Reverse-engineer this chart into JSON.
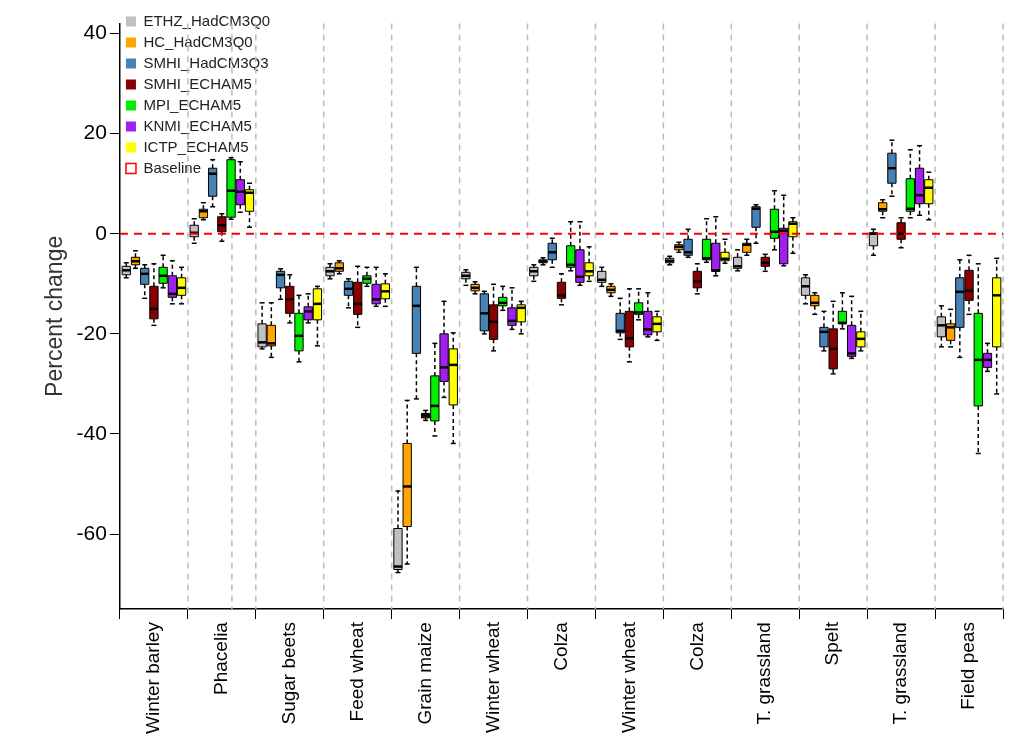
{
  "chart_data": {
    "type": "box",
    "ylabel": "Percent change",
    "categories": [
      "Winter barley",
      "Phacelia",
      "Sugar beets",
      "Feed wheat",
      "Grain maize",
      "Winter wheat",
      "Colza",
      "Winter wheat",
      "Colza",
      "T. grassland",
      "Spelt",
      "T. grassland",
      "Field peas"
    ],
    "ylim": [
      -75,
      42
    ],
    "yticks": [
      -60,
      -40,
      -20,
      0,
      20,
      40
    ],
    "grid": "x",
    "legend": "top left",
    "ref_lines": [
      {
        "axis": "y",
        "value": 0,
        "label": "Baseline",
        "color": "#ff0000",
        "line_style": "dashed"
      }
    ],
    "series": [
      {
        "name": "ETHZ_HadCM3Q0",
        "color": "#c0c0c0",
        "boxes": [
          {
            "low": -8.8,
            "q1": -8.2,
            "median": -7.3,
            "q3": -6.5,
            "high": -5.8
          },
          {
            "low": -1.9,
            "q1": -0.6,
            "median": 0.2,
            "q3": 1.7,
            "high": 3
          },
          {
            "low": -23,
            "q1": -22.6,
            "median": -21.7,
            "q3": -18,
            "high": -13.8
          },
          {
            "low": -9,
            "q1": -8.4,
            "median": -7.5,
            "q3": -6.7,
            "high": -6
          },
          {
            "low": -67.7,
            "q1": -67.1,
            "median": -66.5,
            "q3": -58.9,
            "high": -51.4
          },
          {
            "low": -10.3,
            "q1": -9,
            "median": -8.4,
            "q3": -7.7,
            "high": -7.2
          },
          {
            "low": -9.5,
            "q1": -8.4,
            "median": -7.5,
            "q3": -6.7,
            "high": -6.2
          },
          {
            "low": -10.5,
            "q1": -9.7,
            "median": -9.2,
            "q3": -7.5,
            "high": -6.7
          },
          {
            "low": -6.2,
            "q1": -5.8,
            "median": -5.4,
            "q3": -4.9,
            "high": -4.5
          },
          {
            "low": -7.4,
            "q1": -6.9,
            "median": -6.5,
            "q3": -4.7,
            "high": -3.2
          },
          {
            "low": -14,
            "q1": -12.3,
            "median": -10.5,
            "q3": -8.8,
            "high": -8.2
          },
          {
            "low": -4.3,
            "q1": -2.4,
            "median": 0,
            "q3": 0.2,
            "high": 0.9
          },
          {
            "low": -22.6,
            "q1": -20.6,
            "median": -18.3,
            "q3": -16.6,
            "high": -14.4
          }
        ]
      },
      {
        "name": "HC_HadCM3Q0",
        "color": "#ffa500",
        "boxes": [
          {
            "low": -6.9,
            "q1": -6.2,
            "median": -5.5,
            "q3": -4.7,
            "high": -3.4
          },
          {
            "low": 2.8,
            "q1": 3.2,
            "median": 4.5,
            "q3": 4.9,
            "high": 6.2
          },
          {
            "low": -24.7,
            "q1": -22.4,
            "median": -21.9,
            "q3": -18.3,
            "high": -13.8
          },
          {
            "low": -8,
            "q1": -7.5,
            "median": -6.9,
            "q3": -5.8,
            "high": -5.4
          },
          {
            "low": -66,
            "q1": -58.5,
            "median": -50.5,
            "q3": -41.9,
            "high": -33.3
          },
          {
            "low": -12,
            "q1": -11.4,
            "median": -10.8,
            "q3": -10.1,
            "high": -9.6
          },
          {
            "low": -6.2,
            "q1": -5.8,
            "median": -5.5,
            "q3": -5.2,
            "high": -4.8
          },
          {
            "low": -12.5,
            "q1": -11.8,
            "median": -11.2,
            "q3": -10.5,
            "high": -10
          },
          {
            "low": -3.7,
            "q1": -3.2,
            "median": -2.6,
            "q3": -2.2,
            "high": -1.7
          },
          {
            "low": -4.3,
            "q1": -3.7,
            "median": -2.2,
            "q3": -1.9,
            "high": -1.1
          },
          {
            "low": -16.1,
            "q1": -14.4,
            "median": -13.8,
            "q3": -12.3,
            "high": -11.8
          },
          {
            "low": 3.2,
            "q1": 4.5,
            "median": 4.9,
            "q3": 6.2,
            "high": 6.8
          },
          {
            "low": -22.6,
            "q1": -21.3,
            "median": -18.7,
            "q3": -18,
            "high": -15.1
          }
        ]
      },
      {
        "name": "SMHI_HadCM3Q3",
        "color": "#4682b4",
        "boxes": [
          {
            "low": -12.9,
            "q1": -10.1,
            "median": -8,
            "q3": -6.9,
            "high": -6.2
          },
          {
            "low": 5.4,
            "q1": 7.5,
            "median": 12,
            "q3": 13.1,
            "high": 14.8
          },
          {
            "low": -13.1,
            "q1": -10.8,
            "median": -8.2,
            "q3": -7.5,
            "high": -7
          },
          {
            "low": -14.8,
            "q1": -12.3,
            "median": -11,
            "q3": -9.5,
            "high": -9
          },
          {
            "low": -33,
            "q1": -23.9,
            "median": -14.4,
            "q3": -10.5,
            "high": -6.7
          },
          {
            "low": -20,
            "q1": -19.4,
            "median": -15.9,
            "q3": -12,
            "high": -11.5
          },
          {
            "low": -6.7,
            "q1": -5.2,
            "median": -3.7,
            "q3": -1.9,
            "high": -0.9
          },
          {
            "low": -21.1,
            "q1": -19.8,
            "median": -19.4,
            "q3": -15.9,
            "high": -12.9
          },
          {
            "low": -4.7,
            "q1": -4.3,
            "median": -3.7,
            "q3": -1.1,
            "high": 0.9
          },
          {
            "low": -1.9,
            "q1": 1.3,
            "median": 5,
            "q3": 5.4,
            "high": 5.8
          },
          {
            "low": -23.4,
            "q1": -22.6,
            "median": -19.6,
            "q3": -18.7,
            "high": -15.5
          },
          {
            "low": 7.5,
            "q1": 10.1,
            "median": 13.1,
            "q3": 16.1,
            "high": 18.7
          },
          {
            "low": -24.7,
            "q1": -18.7,
            "median": -11.6,
            "q3": -8.8,
            "high": -5.2
          }
        ]
      },
      {
        "name": "SMHI_ECHAM5",
        "color": "#8b0000",
        "boxes": [
          {
            "low": -18.3,
            "q1": -17,
            "median": -15,
            "q3": -10.5,
            "high": -6
          },
          {
            "low": -1.5,
            "q1": 0.4,
            "median": 1.7,
            "q3": 3.4,
            "high": 4
          },
          {
            "low": -17.8,
            "q1": -15.9,
            "median": -13.1,
            "q3": -10.5,
            "high": -8.2
          },
          {
            "low": -18.7,
            "q1": -16.1,
            "median": -14,
            "q3": -9.7,
            "high": -6.5
          },
          {
            "low": -37.3,
            "q1": -36.8,
            "median": -36.3,
            "q3": -35.9,
            "high": -35.3
          },
          {
            "low": -23.4,
            "q1": -21.1,
            "median": -17.6,
            "q3": -14.2,
            "high": -10.1
          },
          {
            "low": -14.2,
            "q1": -12.9,
            "median": -12.3,
            "q3": -9.7,
            "high": -8
          },
          {
            "low": -25.6,
            "q1": -22.6,
            "median": -20.9,
            "q3": -15.5,
            "high": -11
          },
          {
            "low": -12,
            "q1": -10.8,
            "median": -9.5,
            "q3": -7.5,
            "high": -6
          },
          {
            "low": -7.5,
            "q1": -6.5,
            "median": -5.8,
            "q3": -4.7,
            "high": -4.1
          },
          {
            "low": -28,
            "q1": -27,
            "median": -23,
            "q3": -19,
            "high": -13.5
          },
          {
            "low": -2.8,
            "q1": -1.1,
            "median": 0,
            "q3": 2.2,
            "high": 3.2
          },
          {
            "low": -16.1,
            "q1": -13.3,
            "median": -11.4,
            "q3": -7.3,
            "high": -4.3
          }
        ]
      },
      {
        "name": "MPI_ECHAM5",
        "color": "#00ee00",
        "boxes": [
          {
            "low": -10.8,
            "q1": -9.9,
            "median": -8.4,
            "q3": -6.7,
            "high": -4.3
          },
          {
            "low": 2.9,
            "q1": 3.3,
            "median": 8.6,
            "q3": 14.8,
            "high": 15.2
          },
          {
            "low": -25.6,
            "q1": -23.4,
            "median": -20.4,
            "q3": -15.9,
            "high": -12.3
          },
          {
            "low": -10.5,
            "q1": -9.9,
            "median": -9,
            "q3": -8.4,
            "high": -6.7
          },
          {
            "low": -40.4,
            "q1": -37.4,
            "median": -34.4,
            "q3": -28.4,
            "high": -21.9
          },
          {
            "low": -15.3,
            "q1": -14.4,
            "median": -13.8,
            "q3": -12.7,
            "high": -10.5
          },
          {
            "low": -7.4,
            "q1": -6.7,
            "median": -6.2,
            "q3": -2.4,
            "high": 2.4
          },
          {
            "low": -17.2,
            "q1": -16.1,
            "median": -15.7,
            "q3": -13.8,
            "high": -11
          },
          {
            "low": -5.7,
            "q1": -5.2,
            "median": -4.9,
            "q3": -1.1,
            "high": 3
          },
          {
            "low": -3.2,
            "q1": -0.9,
            "median": 0.4,
            "q3": 4.9,
            "high": 8.6
          },
          {
            "low": -19,
            "q1": -18,
            "median": -17.8,
            "q3": -15.5,
            "high": -11.8
          },
          {
            "low": 3.2,
            "q1": 4.5,
            "median": 5,
            "q3": 11,
            "high": 16.8
          },
          {
            "low": -43.9,
            "q1": -34.4,
            "median": -25.2,
            "q3": -15.9,
            "high": -6
          }
        ]
      },
      {
        "name": "KNMI_ECHAM5",
        "color": "#a020f0",
        "boxes": [
          {
            "low": -14,
            "q1": -12.7,
            "median": -12,
            "q3": -8.4,
            "high": -5.4
          },
          {
            "low": 4.3,
            "q1": 5.8,
            "median": 8.4,
            "q3": 10.8,
            "high": 14.4
          },
          {
            "low": -17.8,
            "q1": -17.2,
            "median": -15.5,
            "q3": -14.6,
            "high": -12
          },
          {
            "low": -14.5,
            "q1": -14,
            "median": -13.1,
            "q3": -10.1,
            "high": -6.7
          },
          {
            "low": -32.7,
            "q1": -29.5,
            "median": -26.7,
            "q3": -20,
            "high": -13.5
          },
          {
            "low": -19.1,
            "q1": -18.3,
            "median": -17.4,
            "q3": -14.8,
            "high": -10.8
          },
          {
            "low": -10.3,
            "q1": -9.7,
            "median": -8.6,
            "q3": -3.2,
            "high": 2.4
          },
          {
            "low": -20.6,
            "q1": -20.2,
            "median": -19.1,
            "q3": -15.5,
            "high": -11.8
          },
          {
            "low": -8.4,
            "q1": -7.5,
            "median": -7.3,
            "q3": -1.9,
            "high": 3.4
          },
          {
            "low": -6.4,
            "q1": -6,
            "median": 0.6,
            "q3": 1.1,
            "high": 7.7
          },
          {
            "low": -24.9,
            "q1": -24.5,
            "median": -23.9,
            "q3": -18.3,
            "high": -12.5
          },
          {
            "low": 3.7,
            "q1": 6,
            "median": 7.7,
            "q3": 13.1,
            "high": 17.6
          },
          {
            "low": -27.5,
            "q1": -26.7,
            "median": -25.2,
            "q3": -23.9,
            "high": -21.9
          }
        ]
      },
      {
        "name": "ICTP_ECHAM5",
        "color": "#ffff00",
        "boxes": [
          {
            "low": -14,
            "q1": -12.3,
            "median": -10.8,
            "q3": -8.8,
            "high": -6.7
          },
          {
            "low": 1.3,
            "q1": 4.5,
            "median": 8.2,
            "q3": 8.8,
            "high": 10.1
          },
          {
            "low": -22.4,
            "q1": -17.2,
            "median": -14,
            "q3": -11,
            "high": -10.5
          },
          {
            "low": -14.5,
            "q1": -13,
            "median": -11.5,
            "q3": -10,
            "high": -8
          },
          {
            "low": -41.9,
            "q1": -34.2,
            "median": -26.2,
            "q3": -23,
            "high": -19.8
          },
          {
            "low": -20,
            "q1": -17.6,
            "median": -14.8,
            "q3": -14.2,
            "high": -13.5
          },
          {
            "low": -9.5,
            "q1": -8.4,
            "median": -7.5,
            "q3": -5.8,
            "high": -2.6
          },
          {
            "low": -21.3,
            "q1": -19.6,
            "median": -18,
            "q3": -16.6,
            "high": -15.5
          },
          {
            "low": -5.9,
            "q1": -5.4,
            "median": -5,
            "q3": -3.7,
            "high": -1.1
          },
          {
            "low": -3.9,
            "q1": -0.6,
            "median": 2,
            "q3": 2.4,
            "high": 3.2
          },
          {
            "low": -23.4,
            "q1": -22.6,
            "median": -21,
            "q3": -19.6,
            "high": -15.5
          },
          {
            "low": 2.8,
            "q1": 6,
            "median": 9.2,
            "q3": 10.8,
            "high": 12.3
          },
          {
            "low": -32,
            "q1": -22.6,
            "median": -12.3,
            "q3": -8.8,
            "high": -4.9
          }
        ]
      }
    ]
  }
}
